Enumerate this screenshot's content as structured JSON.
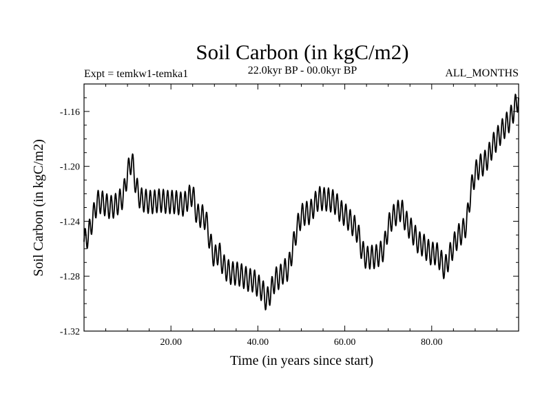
{
  "chart_data": {
    "type": "line",
    "title": "Soil Carbon (in kgC/m2)",
    "left_subtitle": "Expt = temkw1-temka1",
    "center_subtitle": "22.0kyr BP - 00.0kyr BP",
    "right_subtitle": "ALL_MONTHS",
    "xlabel": "Time (in years since start)",
    "ylabel": "Soil Carbon (in kgC/m2)",
    "xlim": [
      0,
      100
    ],
    "ylim": [
      -1.32,
      -1.14
    ],
    "grid": false,
    "x_ticks": [
      {
        "value": 20,
        "label": "20.00"
      },
      {
        "value": 40,
        "label": "40.00"
      },
      {
        "value": 60,
        "label": "60.00"
      },
      {
        "value": 80,
        "label": "80.00"
      }
    ],
    "y_ticks": [
      {
        "value": -1.16,
        "label": "-1.16"
      },
      {
        "value": -1.2,
        "label": "-1.20"
      },
      {
        "value": -1.24,
        "label": "-1.24"
      },
      {
        "value": -1.28,
        "label": "-1.28"
      },
      {
        "value": -1.32,
        "label": "-1.32"
      }
    ],
    "seasonal_amplitude": 0.0085,
    "series": [
      {
        "name": "Soil Carbon",
        "x": [
          0,
          1,
          2,
          3,
          4,
          5,
          6,
          7,
          8,
          9,
          10,
          11,
          12,
          13,
          14,
          15,
          16,
          17,
          18,
          19,
          20,
          21,
          22,
          23,
          24,
          25,
          26,
          27,
          28,
          29,
          30,
          31,
          32,
          33,
          34,
          35,
          36,
          37,
          38,
          39,
          40,
          41,
          42,
          43,
          44,
          45,
          46,
          47,
          48,
          49,
          50,
          51,
          52,
          53,
          54,
          55,
          56,
          57,
          58,
          59,
          60,
          61,
          62,
          63,
          64,
          65,
          66,
          67,
          68,
          69,
          70,
          71,
          72,
          73,
          74,
          75,
          76,
          77,
          78,
          79,
          80,
          81,
          82,
          83,
          84,
          85,
          86,
          87,
          88,
          89,
          90,
          91,
          92,
          93,
          94,
          95,
          96,
          97,
          98,
          99,
          100
        ],
        "values": [
          -1.255,
          -1.25,
          -1.238,
          -1.226,
          -1.226,
          -1.228,
          -1.23,
          -1.229,
          -1.226,
          -1.222,
          -1.205,
          -1.195,
          -1.215,
          -1.224,
          -1.225,
          -1.226,
          -1.226,
          -1.225,
          -1.225,
          -1.226,
          -1.226,
          -1.226,
          -1.227,
          -1.228,
          -1.223,
          -1.22,
          -1.236,
          -1.236,
          -1.238,
          -1.255,
          -1.267,
          -1.262,
          -1.272,
          -1.276,
          -1.278,
          -1.278,
          -1.279,
          -1.281,
          -1.283,
          -1.283,
          -1.287,
          -1.29,
          -1.298,
          -1.291,
          -1.282,
          -1.281,
          -1.276,
          -1.275,
          -1.26,
          -1.245,
          -1.236,
          -1.234,
          -1.234,
          -1.228,
          -1.223,
          -1.224,
          -1.224,
          -1.225,
          -1.227,
          -1.233,
          -1.235,
          -1.239,
          -1.243,
          -1.248,
          -1.262,
          -1.267,
          -1.266,
          -1.266,
          -1.264,
          -1.26,
          -1.244,
          -1.237,
          -1.234,
          -1.231,
          -1.24,
          -1.245,
          -1.25,
          -1.256,
          -1.257,
          -1.261,
          -1.264,
          -1.263,
          -1.268,
          -1.275,
          -1.266,
          -1.258,
          -1.251,
          -1.248,
          -1.242,
          -1.218,
          -1.205,
          -1.2,
          -1.198,
          -1.193,
          -1.185,
          -1.18,
          -1.175,
          -1.17,
          -1.166,
          -1.158,
          -1.15
        ]
      }
    ]
  }
}
